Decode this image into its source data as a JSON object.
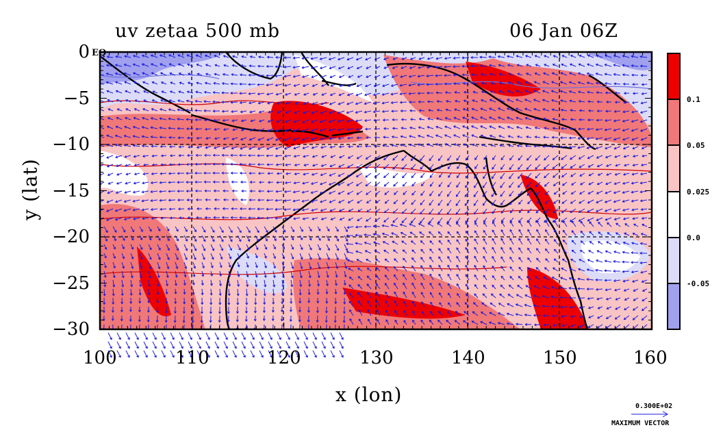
{
  "title_left": "uv zetaa 500 mb",
  "title_right": "06 Jan 06Z",
  "eq_label": "EQ",
  "x_axis": {
    "label": "x (lon)",
    "ticks": [
      "100",
      "110",
      "120",
      "130",
      "140",
      "150",
      "160"
    ],
    "range": [
      100,
      160
    ]
  },
  "y_axis": {
    "label": "y (lat)",
    "ticks": [
      "0",
      "−5",
      "−10",
      "−15",
      "−20",
      "−25",
      "−30"
    ],
    "range": [
      -30,
      0
    ]
  },
  "colorbar": {
    "ticks": [
      "0.1",
      "0.05",
      "0.025",
      "0.0",
      "-0.05"
    ],
    "colors": [
      "#ee0000",
      "#f07878",
      "#f8c4c4",
      "#ffffff",
      "#dcdcf8",
      "#a0a0ee"
    ]
  },
  "max_vector": {
    "value": "0.300E+02",
    "label": "MAXIMUM VECTOR"
  },
  "colors": {
    "wind_vector": "#1a1adc",
    "coastline": "#000000",
    "grid": "#000000"
  }
}
